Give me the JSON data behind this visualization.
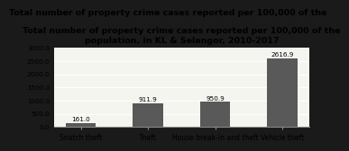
{
  "categories": [
    "Snatch theft",
    "Theft",
    "House break-in and theft",
    "Vehicle theft"
  ],
  "values": [
    161.0,
    911.9,
    950.9,
    2616.9
  ],
  "bar_color": "#595959",
  "title_line1": "Total number of property crime cases reported per 100,000 of the",
  "title_line2": "population, in KL & Selangor, 2010-2017",
  "ylim": [
    0,
    3000
  ],
  "yticks": [
    0,
    500,
    1000,
    1500,
    2000,
    2500,
    3000
  ],
  "ytick_labels": [
    "0.0",
    "500.0",
    "1000.0",
    "1500.0",
    "2000.0",
    "2500.0",
    "3000.0"
  ],
  "value_labels": [
    "161.0",
    "911.9",
    "950.9",
    "2616.9"
  ],
  "figure_bg_color": "#1a1a1a",
  "plot_bg_color": "#f5f5f0",
  "grid_color": "#ffffff",
  "title_fontsize": 6.8,
  "label_fontsize": 5.5,
  "tick_fontsize": 5.2,
  "value_fontsize": 5.2,
  "bar_width": 0.45
}
